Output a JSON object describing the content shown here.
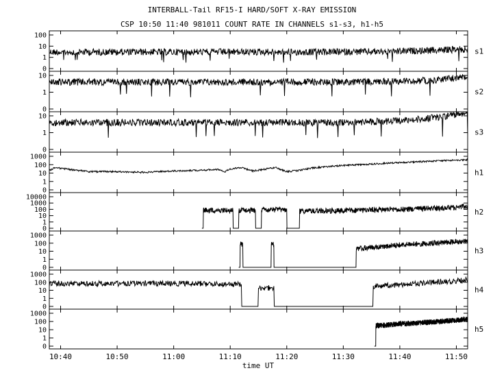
{
  "chart_data": {
    "type": "line",
    "title": "INTERBALL-Tail RF15-I HARD/SOFT X-RAY EMISSION",
    "subtitle": "CSP 10:50 11:40 981011  COUNT RATE IN CHANNELS s1-s3, h1-h5",
    "xlabel": "time UT",
    "x_ticks": [
      "10:40",
      "10:50",
      "11:00",
      "11:10",
      "11:20",
      "11:30",
      "11:40",
      "11:50"
    ],
    "xlim": [
      "10:38",
      "11:52"
    ],
    "y_scale": "log",
    "grid": false,
    "panels": [
      {
        "name": "s1",
        "y_ticks": [
          "100",
          "10",
          "1",
          "0"
        ],
        "series": {
          "x": [
            "10:38",
            "10:45",
            "10:50",
            "11:00",
            "11:10",
            "11:20",
            "11:30",
            "11:40",
            "11:45",
            "11:50",
            "11:52"
          ],
          "values": [
            3,
            3,
            3,
            3,
            3,
            3,
            3,
            3.5,
            4,
            5,
            5
          ]
        }
      },
      {
        "name": "s2",
        "y_ticks": [
          "10",
          "1",
          "0"
        ],
        "series": {
          "x": [
            "10:38",
            "10:45",
            "10:50",
            "11:00",
            "11:10",
            "11:20",
            "11:30",
            "11:40",
            "11:45",
            "11:50",
            "11:52"
          ],
          "values": [
            4,
            4,
            4,
            4,
            4,
            4,
            4,
            4.5,
            5,
            7,
            8
          ]
        }
      },
      {
        "name": "s3",
        "y_ticks": [
          "10",
          "1",
          "0"
        ],
        "series": {
          "x": [
            "10:38",
            "10:45",
            "10:50",
            "11:00",
            "11:10",
            "11:20",
            "11:30",
            "11:40",
            "11:45",
            "11:50",
            "11:52"
          ],
          "values": [
            4,
            4,
            4,
            4,
            4,
            4,
            4,
            5,
            7,
            12,
            14
          ]
        }
      },
      {
        "name": "h1",
        "y_ticks": [
          "1000",
          "100",
          "10",
          "1",
          "0"
        ],
        "series": {
          "x": [
            "10:38",
            "10:39",
            "10:42",
            "10:45",
            "10:50",
            "10:55",
            "11:00",
            "11:05",
            "11:08",
            "11:09",
            "11:10",
            "11:12",
            "11:14",
            "11:16",
            "11:18",
            "11:20",
            "11:22",
            "11:25",
            "11:30",
            "11:35",
            "11:40",
            "11:45",
            "11:50",
            "11:52"
          ],
          "values": [
            20,
            45,
            25,
            15,
            15,
            12,
            18,
            22,
            28,
            14,
            32,
            45,
            18,
            28,
            45,
            15,
            20,
            45,
            80,
            120,
            180,
            250,
            350,
            400
          ]
        }
      },
      {
        "name": "h2",
        "y_ticks": [
          "10000",
          "1000",
          "100",
          "10",
          "1",
          "0"
        ],
        "series": {
          "x": [
            "11:05",
            "11:05.5",
            "11:10",
            "11:11",
            "11:12",
            "11:14",
            "11:15",
            "11:16",
            "11:18",
            "11:22",
            "11:22.5",
            "11:30",
            "11:40",
            "11:50",
            "11:52"
          ],
          "values": [
            0,
            70,
            70,
            0,
            70,
            70,
            0,
            80,
            80,
            0,
            50,
            60,
            100,
            200,
            300
          ]
        }
      },
      {
        "name": "h3",
        "y_ticks": [
          "1000",
          "100",
          "10",
          "1",
          "0"
        ],
        "series": {
          "x": [
            "11:11.5",
            "11:12",
            "11:12.5",
            "11:17",
            "11:17.5",
            "11:18",
            "11:32",
            "11:32.5",
            "11:40",
            "11:50",
            "11:52"
          ],
          "values": [
            0,
            80,
            0,
            0,
            70,
            0,
            0,
            20,
            60,
            150,
            200
          ]
        }
      },
      {
        "name": "h4",
        "y_ticks": [
          "1000",
          "100",
          "10",
          "1",
          "0"
        ],
        "series": {
          "x": [
            "10:38",
            "11:05",
            "11:05.5",
            "11:08",
            "11:11.5",
            "11:12.5",
            "11:17.5",
            "11:18",
            "11:35",
            "11:35.5",
            "11:40",
            "11:50",
            "11:52"
          ],
          "values": [
            70,
            70,
            60,
            60,
            60,
            0,
            20,
            0,
            0,
            30,
            50,
            150,
            200
          ]
        }
      },
      {
        "name": "h5",
        "y_ticks": [
          "1000",
          "100",
          "10",
          "1",
          "0"
        ],
        "series": {
          "x": [
            "11:35.5",
            "11:36",
            "11:40",
            "11:45",
            "11:50",
            "11:52"
          ],
          "values": [
            0,
            30,
            50,
            80,
            140,
            180
          ]
        }
      }
    ]
  }
}
